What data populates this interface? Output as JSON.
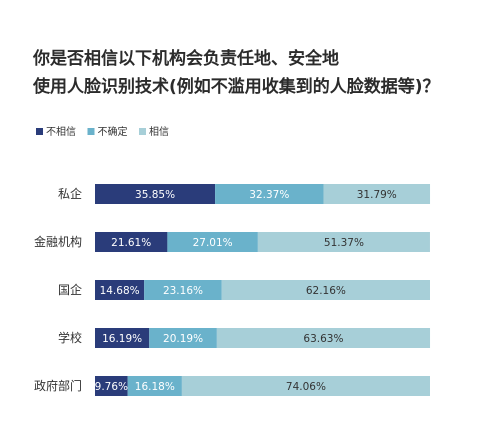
{
  "title": {
    "line1": "你是否相信以下机构会负责任地、安全地",
    "line2": "使用人脸识别技术(例如不滥用收集到的人脸数据等)？"
  },
  "chart_data": {
    "type": "bar",
    "orientation": "horizontal",
    "stacked": true,
    "categories": [
      "私企",
      "金融机构",
      "国企",
      "学校",
      "政府部门"
    ],
    "series": [
      {
        "name": "不相信",
        "values": [
          35.85,
          21.61,
          14.68,
          16.19,
          9.76
        ],
        "color": "#2a3c7a",
        "label_color": "#ffffff"
      },
      {
        "name": "不确定",
        "values": [
          32.37,
          27.01,
          23.16,
          20.19,
          16.18
        ],
        "color": "#6ab2cb",
        "label_color": "#ffffff"
      },
      {
        "name": "相信",
        "values": [
          31.79,
          51.37,
          62.16,
          63.63,
          74.06
        ],
        "color": "#a7cfd8",
        "label_color": "#333333"
      }
    ],
    "value_suffix": "%",
    "xlim": [
      0,
      100
    ],
    "legend": "top-left",
    "grid": false
  }
}
